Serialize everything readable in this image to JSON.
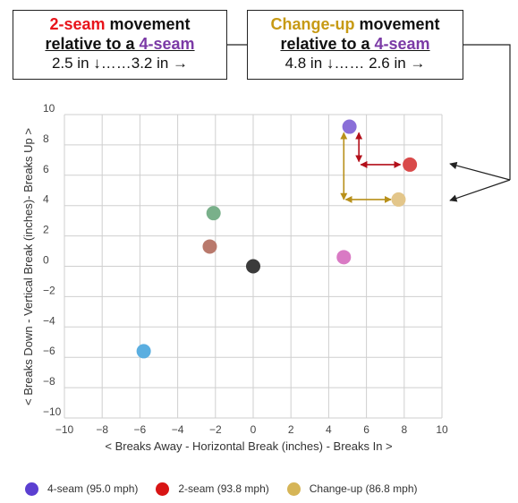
{
  "callouts": {
    "left": {
      "title_pitch": "2-seam",
      "title_rest": " movement",
      "subtitle_prefix": "relative to a ",
      "subtitle_pitch": "4-seam",
      "value_down": "2.5 in ↓……",
      "value_across": "3.2 in →"
    },
    "right": {
      "title_pitch": "Change-up",
      "title_rest": " movement",
      "subtitle_prefix": "relative to a ",
      "subtitle_pitch": "4-seam",
      "value_down": "4.8 in ↓……",
      "value_across": " 2.6 in →"
    }
  },
  "chart_data": {
    "type": "scatter",
    "xlabel": "< Breaks Away - Horizontal Break (inches) - Breaks In >",
    "ylabel": "< Breaks Down - Vertical Break (inches)- Breaks Up >",
    "xlim": [
      -10,
      10
    ],
    "ylim": [
      -10,
      10
    ],
    "x_ticks": [
      "−10",
      "−8",
      "−6",
      "−4",
      "−2",
      "0",
      "2",
      "4",
      "6",
      "8",
      "10"
    ],
    "y_ticks": [
      "10",
      "8",
      "6",
      "4",
      "2",
      "0",
      "−2",
      "−4",
      "−6",
      "−8",
      "−10"
    ],
    "grid": true,
    "points": [
      {
        "name": "4-seam",
        "x": 5.1,
        "y": 9.2,
        "color": "#8a6fd8"
      },
      {
        "name": "2-seam",
        "x": 8.3,
        "y": 6.7,
        "color": "#d94a4a"
      },
      {
        "name": "Change-up",
        "x": 7.7,
        "y": 4.4,
        "color": "#e3c68a"
      },
      {
        "name": "",
        "x": -2.1,
        "y": 3.5,
        "color": "#79b08a"
      },
      {
        "name": "",
        "x": -2.3,
        "y": 1.3,
        "color": "#b9796c"
      },
      {
        "name": "",
        "x": 0.0,
        "y": 0.0,
        "color": "#3b3b3b"
      },
      {
        "name": "",
        "x": 4.8,
        "y": 0.6,
        "color": "#d97ac4"
      },
      {
        "name": "",
        "x": -5.8,
        "y": -5.6,
        "color": "#5aaee0"
      }
    ],
    "legend": [
      {
        "label": "4-seam (95.0 mph)",
        "color": "#5b3fd1"
      },
      {
        "label": "2-seam (93.8 mph)",
        "color": "#d81515"
      },
      {
        "label": "Change-up (86.8 mph)",
        "color": "#d6b557"
      }
    ],
    "legend_position": "bottom",
    "annotation_colors": {
      "two_seam": "#b30f1a",
      "changeup": "#b8901a",
      "callout_lines": "#222222"
    }
  }
}
